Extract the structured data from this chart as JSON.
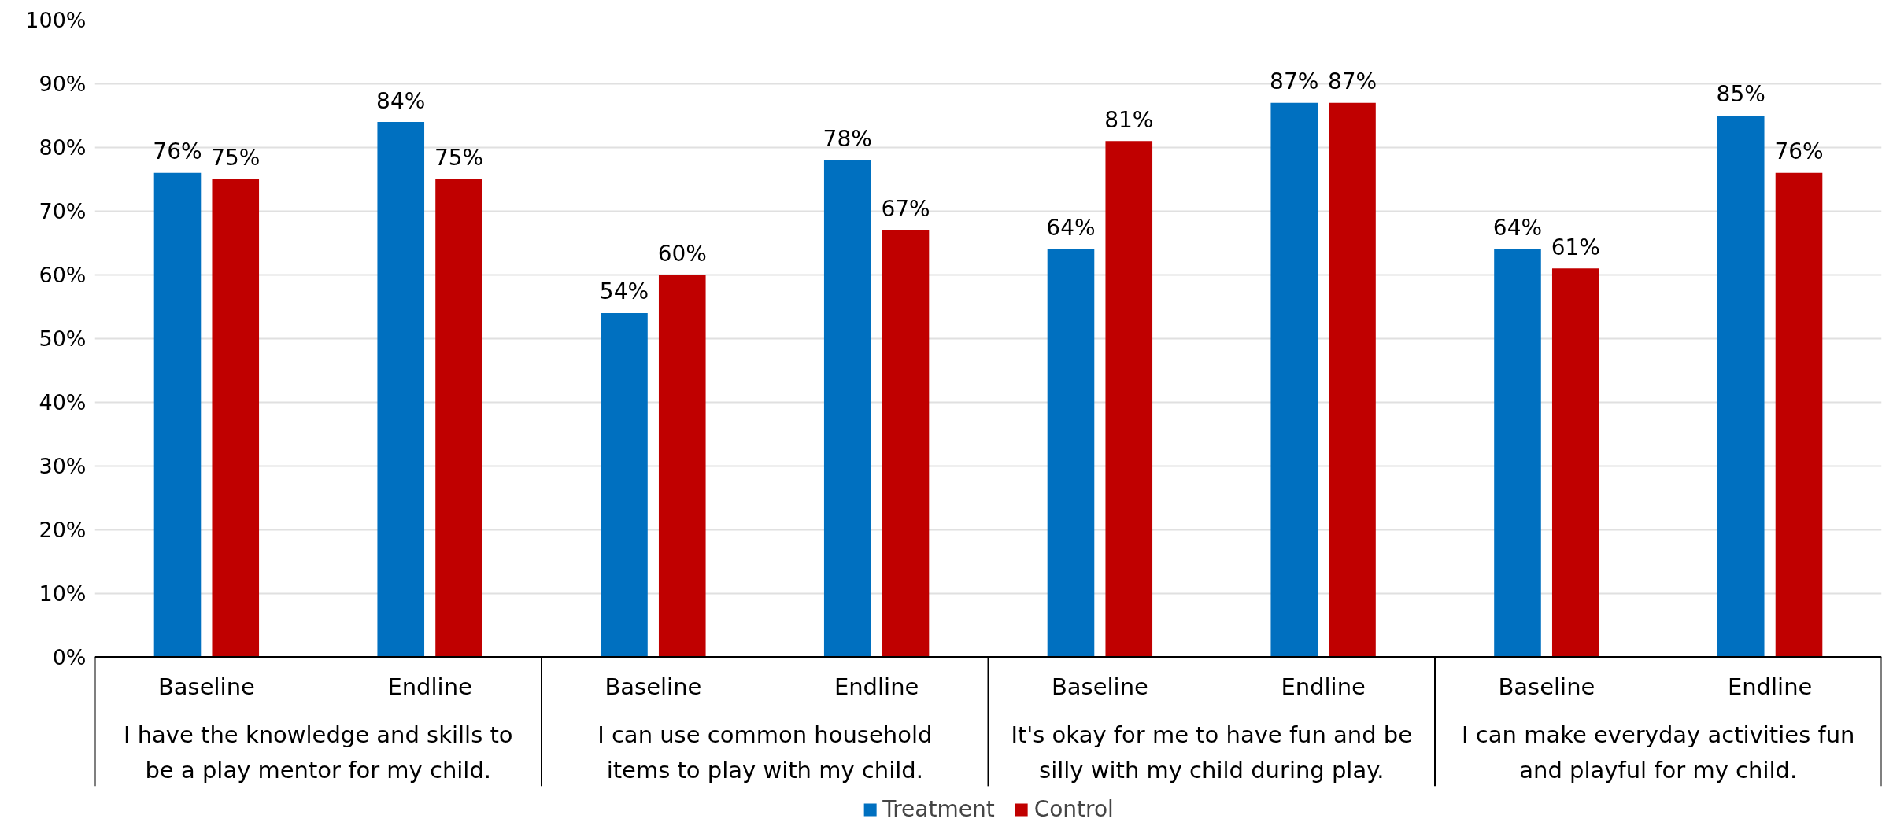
{
  "chart_data": {
    "type": "bar",
    "categories": [
      "Baseline",
      "Endline",
      "Baseline",
      "Endline",
      "Baseline",
      "Endline",
      "Baseline",
      "Endline"
    ],
    "series": [
      {
        "name": "Treatment",
        "color": "#0070c0",
        "values": [
          76,
          84,
          54,
          78,
          64,
          87,
          64,
          85
        ],
        "value_labels": [
          "76%",
          "84%",
          "54%",
          "78%",
          "64%",
          "87%",
          "64%",
          "85%"
        ]
      },
      {
        "name": "Control",
        "color": "#c00000",
        "values": [
          75,
          75,
          60,
          67,
          81,
          87,
          61,
          76
        ],
        "value_labels": [
          "75%",
          "75%",
          "60%",
          "67%",
          "81%",
          "87%",
          "61%",
          "76%"
        ]
      }
    ],
    "annotations": [
      "I have the knowledge and skills to\nbe a play mentor for my child.",
      "I can use common household\nitems to play with my child.",
      "It's okay for me to have fun and be\nsilly with my child during play.",
      "I can make everyday activities fun\nand playful for my child."
    ],
    "ylim": [
      0,
      100
    ],
    "yticks": [
      {
        "value": 0,
        "label": "0%"
      },
      {
        "value": 10,
        "label": "10%"
      },
      {
        "value": 20,
        "label": "20%"
      },
      {
        "value": 30,
        "label": "30%"
      },
      {
        "value": 40,
        "label": "40%"
      },
      {
        "value": 50,
        "label": "50%"
      },
      {
        "value": 60,
        "label": "60%"
      },
      {
        "value": 70,
        "label": "70%"
      },
      {
        "value": 80,
        "label": "80%"
      },
      {
        "value": 90,
        "label": "90%"
      },
      {
        "value": 100,
        "label": "100%"
      }
    ],
    "grid": "y",
    "legend": "bottom"
  }
}
